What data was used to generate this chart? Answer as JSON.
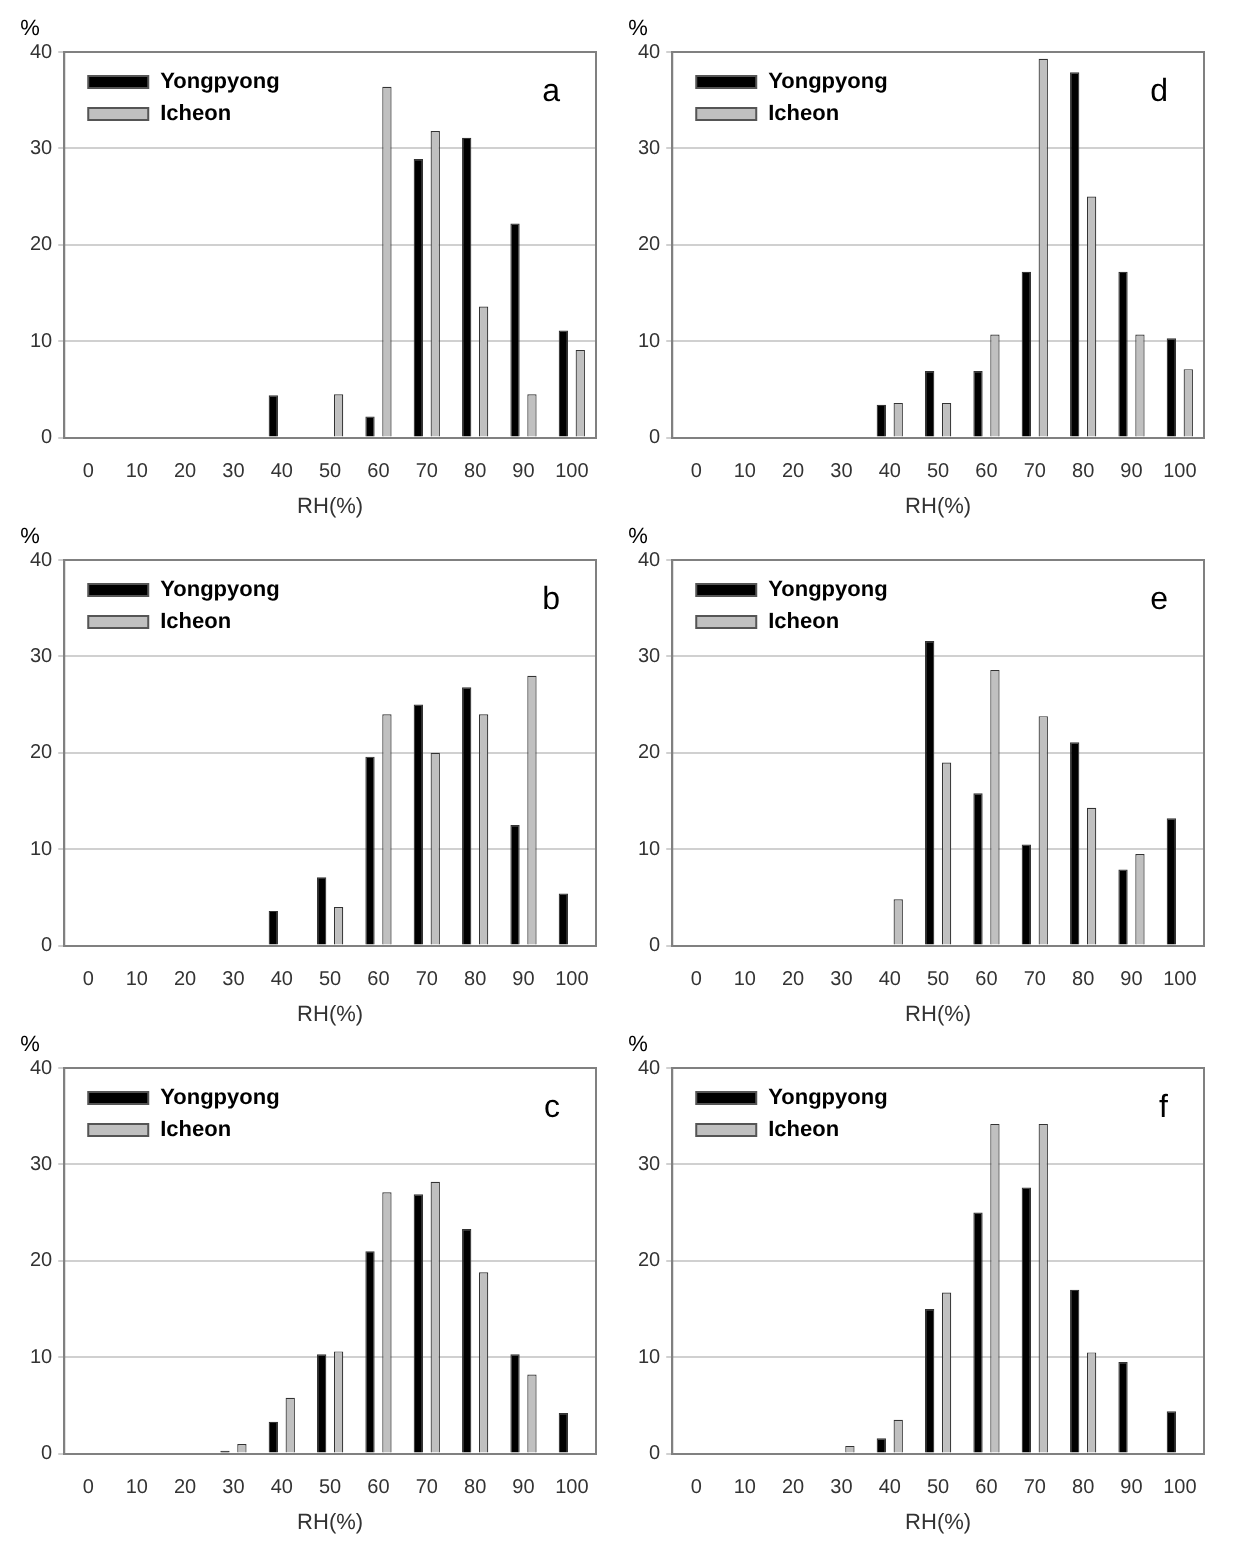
{
  "chart_data": [
    {
      "type": "bar",
      "xlabel": "RH(%)",
      "ylabel": "%",
      "categories": [
        "0",
        "10",
        "20",
        "30",
        "40",
        "50",
        "60",
        "70",
        "80",
        "90",
        "100"
      ],
      "ylim": [
        0,
        40
      ],
      "yticks": [
        0,
        10,
        20,
        30,
        40
      ],
      "grid": "y",
      "legend": "top left",
      "annotations": [
        "a"
      ],
      "series": [
        {
          "name": "Yongpyong",
          "color": "#000000",
          "values": [
            0,
            0,
            0,
            0,
            4.4,
            0,
            2.2,
            28.9,
            31.1,
            22.2,
            11.1
          ]
        },
        {
          "name": "Icheon",
          "color": "#c0c0c0",
          "values": [
            0,
            0,
            0,
            0,
            0,
            4.5,
            36.4,
            31.8,
            13.6,
            4.5,
            9.1
          ]
        }
      ]
    },
    {
      "type": "bar",
      "xlabel": "RH(%)",
      "ylabel": "%",
      "categories": [
        "0",
        "10",
        "20",
        "30",
        "40",
        "50",
        "60",
        "70",
        "80",
        "90",
        "100"
      ],
      "ylim": [
        0,
        40
      ],
      "yticks": [
        0,
        10,
        20,
        30,
        40
      ],
      "grid": "y",
      "legend": "top left",
      "annotations": [
        "d"
      ],
      "series": [
        {
          "name": "Yongpyong",
          "color": "#000000",
          "values": [
            0,
            0,
            0,
            0,
            3.4,
            6.9,
            6.9,
            17.2,
            37.9,
            17.2,
            10.3
          ]
        },
        {
          "name": "Icheon",
          "color": "#c0c0c0",
          "values": [
            0,
            0,
            0,
            0,
            3.6,
            3.6,
            10.7,
            39.3,
            25,
            10.7,
            7.1
          ]
        }
      ]
    },
    {
      "type": "bar",
      "xlabel": "RH(%)",
      "ylabel": "%",
      "categories": [
        "0",
        "10",
        "20",
        "30",
        "40",
        "50",
        "60",
        "70",
        "80",
        "90",
        "100"
      ],
      "ylim": [
        0,
        40
      ],
      "yticks": [
        0,
        10,
        20,
        30,
        40
      ],
      "grid": "y",
      "legend": "top left",
      "annotations": [
        "b"
      ],
      "series": [
        {
          "name": "Yongpyong",
          "color": "#000000",
          "values": [
            0,
            0,
            0,
            0,
            3.6,
            7.1,
            19.6,
            25,
            26.8,
            12.5,
            5.4
          ]
        },
        {
          "name": "Icheon",
          "color": "#c0c0c0",
          "values": [
            0,
            0,
            0,
            0,
            0,
            4,
            24,
            20,
            24,
            28,
            0
          ]
        }
      ]
    },
    {
      "type": "bar",
      "xlabel": "RH(%)",
      "ylabel": "%",
      "categories": [
        "0",
        "10",
        "20",
        "30",
        "40",
        "50",
        "60",
        "70",
        "80",
        "90",
        "100"
      ],
      "ylim": [
        0,
        40
      ],
      "yticks": [
        0,
        10,
        20,
        30,
        40
      ],
      "grid": "y",
      "legend": "top left",
      "annotations": [
        "e"
      ],
      "series": [
        {
          "name": "Yongpyong",
          "color": "#000000",
          "values": [
            0,
            0,
            0,
            0,
            0,
            31.6,
            15.8,
            10.5,
            21.1,
            7.9,
            13.2
          ]
        },
        {
          "name": "Icheon",
          "color": "#c0c0c0",
          "values": [
            0,
            0,
            0,
            0,
            4.8,
            19,
            28.6,
            23.8,
            14.3,
            9.5,
            0
          ]
        }
      ]
    },
    {
      "type": "bar",
      "xlabel": "RH(%)",
      "ylabel": "%",
      "categories": [
        "0",
        "10",
        "20",
        "30",
        "40",
        "50",
        "60",
        "70",
        "80",
        "90",
        "100"
      ],
      "ylim": [
        0,
        40
      ],
      "yticks": [
        0,
        10,
        20,
        30,
        40
      ],
      "grid": "y",
      "legend": "top left",
      "annotations": [
        "c"
      ],
      "series": [
        {
          "name": "Yongpyong",
          "color": "#000000",
          "values": [
            0,
            0,
            0,
            0.3,
            3.3,
            10.3,
            21,
            26.9,
            23.3,
            10.3,
            4.2
          ]
        },
        {
          "name": "Icheon",
          "color": "#c0c0c0",
          "values": [
            0,
            0,
            0,
            1,
            5.8,
            10.6,
            27.1,
            28.2,
            18.8,
            8.2,
            0
          ]
        }
      ]
    },
    {
      "type": "bar",
      "xlabel": "RH(%)",
      "ylabel": "%",
      "categories": [
        "0",
        "10",
        "20",
        "30",
        "40",
        "50",
        "60",
        "70",
        "80",
        "90",
        "100"
      ],
      "ylim": [
        0,
        40
      ],
      "yticks": [
        0,
        10,
        20,
        30,
        40
      ],
      "grid": "y",
      "legend": "top left",
      "annotations": [
        "f"
      ],
      "series": [
        {
          "name": "Yongpyong",
          "color": "#000000",
          "values": [
            0,
            0,
            0,
            0,
            1.6,
            15,
            25,
            27.6,
            17,
            9.5,
            4.4
          ]
        },
        {
          "name": "Icheon",
          "color": "#c0c0c0",
          "values": [
            0,
            0,
            0,
            0.8,
            3.5,
            16.7,
            34.2,
            34.2,
            10.5,
            0,
            0
          ]
        }
      ]
    }
  ]
}
